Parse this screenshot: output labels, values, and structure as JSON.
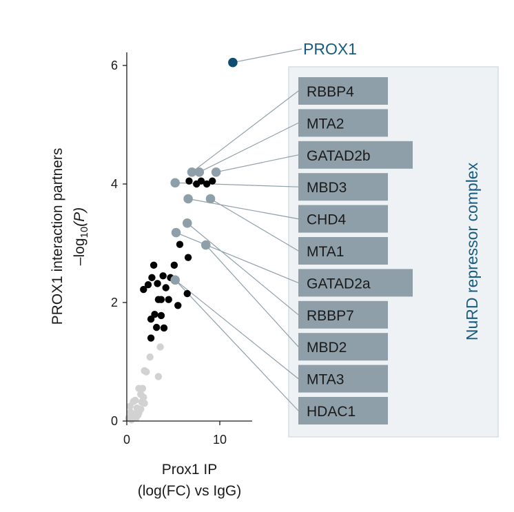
{
  "chart_data": {
    "type": "scatter",
    "xlabel_line1": "Prox1 IP",
    "xlabel_line2": "(log(FC) vs IgG)",
    "ylabel_line1": "PROX1 interaction partners",
    "ylabel_line2_prefix": "–log",
    "ylabel_line2_sub": "10",
    "ylabel_line2_suffix": "(P)",
    "xlim": [
      0,
      13.3
    ],
    "ylim": [
      0,
      6.2
    ],
    "x_ticks": [
      0,
      10
    ],
    "y_ticks": [
      0,
      2,
      4,
      6
    ],
    "colors": {
      "nonsignificant": "#d2d2d2",
      "significant": "#000000",
      "nurd": "#8e9fa9",
      "bait": "#0e4d71",
      "label_box": "#8e9fa9",
      "complex_box_fill": "#eef2f4",
      "complex_box_stroke": "#d3dee3",
      "leader_line": "#8e9fa9",
      "complex_text": "#175c7f"
    },
    "highlight": {
      "name": "PROX1",
      "x": 11.4,
      "y": 6.05
    },
    "complex_name": "NuRD repressor complex",
    "nurd_members": [
      {
        "name": "RBBP4",
        "x": 7.0,
        "y": 4.2
      },
      {
        "name": "MTA2",
        "x": 7.8,
        "y": 4.2
      },
      {
        "name": "GATAD2b",
        "x": 9.6,
        "y": 4.2
      },
      {
        "name": "MBD3",
        "x": 5.2,
        "y": 4.02
      },
      {
        "name": "CHD4",
        "x": 6.6,
        "y": 3.75
      },
      {
        "name": "MTA1",
        "x": 9.0,
        "y": 3.75
      },
      {
        "name": "GATAD2a",
        "x": 5.3,
        "y": 3.18
      },
      {
        "name": "RBBP7",
        "x": 6.5,
        "y": 3.34
      },
      {
        "name": "MBD2",
        "x": 8.5,
        "y": 2.97
      },
      {
        "name": "MTA3",
        "x": 5.2,
        "y": 2.38
      },
      {
        "name": "HDAC1",
        "x": 5.2,
        "y": 2.38
      }
    ],
    "significant_points": [
      {
        "x": 6.7,
        "y": 4.05
      },
      {
        "x": 7.5,
        "y": 4.0
      },
      {
        "x": 8.0,
        "y": 4.05
      },
      {
        "x": 8.6,
        "y": 4.0
      },
      {
        "x": 9.2,
        "y": 4.05
      },
      {
        "x": 5.7,
        "y": 2.98
      },
      {
        "x": 6.6,
        "y": 2.76
      },
      {
        "x": 2.9,
        "y": 2.63
      },
      {
        "x": 5.1,
        "y": 2.63
      },
      {
        "x": 2.7,
        "y": 2.42
      },
      {
        "x": 3.9,
        "y": 2.45
      },
      {
        "x": 4.7,
        "y": 2.42
      },
      {
        "x": 3.3,
        "y": 2.32
      },
      {
        "x": 1.8,
        "y": 2.22
      },
      {
        "x": 2.3,
        "y": 2.3
      },
      {
        "x": 4.2,
        "y": 2.25
      },
      {
        "x": 3.4,
        "y": 2.05
      },
      {
        "x": 3.7,
        "y": 2.05
      },
      {
        "x": 4.5,
        "y": 2.05
      },
      {
        "x": 6.5,
        "y": 2.15
      },
      {
        "x": 5.5,
        "y": 1.95
      },
      {
        "x": 3.0,
        "y": 1.8
      },
      {
        "x": 3.7,
        "y": 1.78
      },
      {
        "x": 2.6,
        "y": 1.72
      },
      {
        "x": 3.2,
        "y": 1.58
      },
      {
        "x": 4.0,
        "y": 1.57
      },
      {
        "x": 2.6,
        "y": 1.4
      }
    ],
    "nonsignificant_points": [
      {
        "x": 3.6,
        "y": 1.25
      },
      {
        "x": 2.5,
        "y": 1.08
      },
      {
        "x": 1.9,
        "y": 0.85
      },
      {
        "x": 2.1,
        "y": 0.83
      },
      {
        "x": 3.4,
        "y": 0.75
      },
      {
        "x": 1.3,
        "y": 0.55
      },
      {
        "x": 1.7,
        "y": 0.55
      },
      {
        "x": 1.5,
        "y": 0.45
      },
      {
        "x": 1.8,
        "y": 0.4
      },
      {
        "x": 0.7,
        "y": 0.33
      },
      {
        "x": 1.6,
        "y": 0.32
      },
      {
        "x": 1.9,
        "y": 0.3
      },
      {
        "x": 1.1,
        "y": 0.22
      },
      {
        "x": 1.5,
        "y": 0.2
      },
      {
        "x": 0.4,
        "y": 0.15
      },
      {
        "x": 0.8,
        "y": 0.12
      },
      {
        "x": 1.3,
        "y": 0.14
      },
      {
        "x": 0.2,
        "y": 0.05
      },
      {
        "x": 0.6,
        "y": 0.07
      },
      {
        "x": 1.0,
        "y": 0.05
      },
      {
        "x": 0.35,
        "y": 0.25
      },
      {
        "x": 0.9,
        "y": 0.35
      },
      {
        "x": 1.2,
        "y": 0.1
      },
      {
        "x": 0.5,
        "y": 0.02
      }
    ]
  }
}
